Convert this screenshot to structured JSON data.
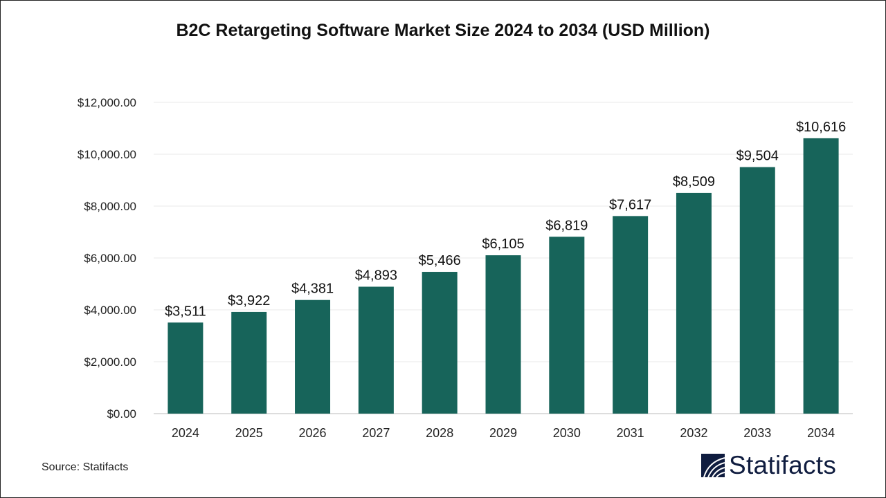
{
  "chart_data": {
    "type": "bar",
    "title": "B2C Retargeting Software Market Size 2024 to 2034 (USD Million)",
    "categories": [
      "2024",
      "2025",
      "2026",
      "2027",
      "2028",
      "2029",
      "2030",
      "2031",
      "2032",
      "2033",
      "2034"
    ],
    "values": [
      3511,
      3922,
      4381,
      4893,
      5466,
      6105,
      6819,
      7617,
      8509,
      9504,
      10616
    ],
    "data_labels": [
      "$3,511",
      "$3,922",
      "$4,381",
      "$4,893",
      "$5,466",
      "$6,105",
      "$6,819",
      "$7,617",
      "$8,509",
      "$9,504",
      "$10,616"
    ],
    "yticks": [
      "$0.00",
      "$2,000.00",
      "$4,000.00",
      "$6,000.00",
      "$8,000.00",
      "$10,000.00",
      "$12,000.00"
    ],
    "ylim": [
      0,
      12000
    ],
    "grid": true,
    "bar_color": "#17645a"
  },
  "source": "Source: Statifacts",
  "logo": "Statifacts"
}
